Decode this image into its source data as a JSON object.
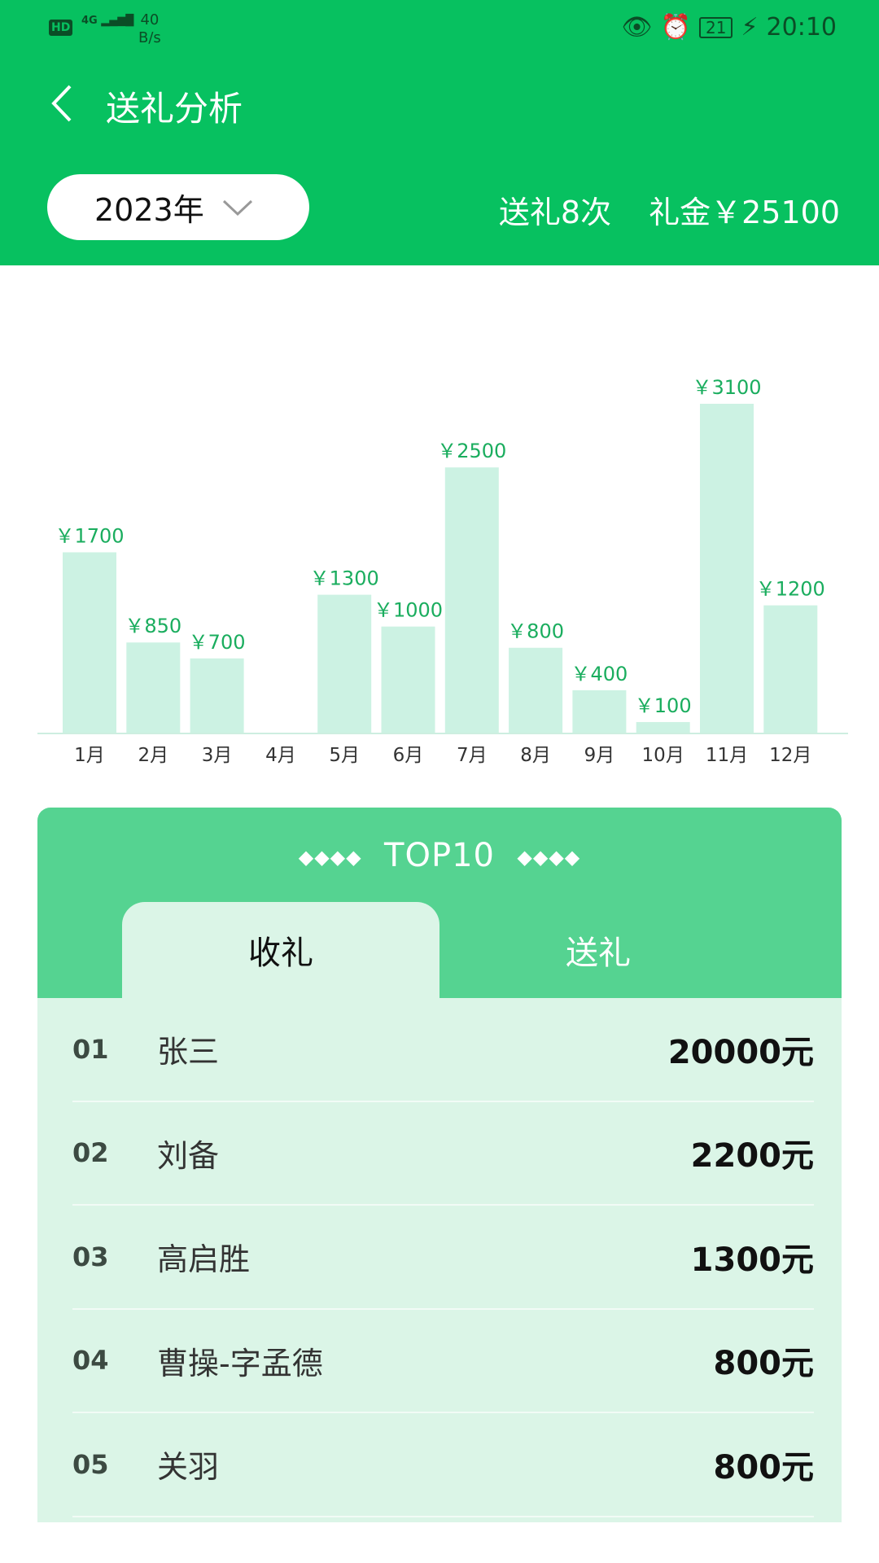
{
  "status_bar": {
    "hd": "HD",
    "network": "4G",
    "speed_value": "40",
    "speed_unit": "B/s",
    "battery": "21",
    "time": "20:10"
  },
  "header": {
    "title": "送礼分析",
    "year": "2023年",
    "count_text": "送礼8次",
    "amount_text": "礼金￥25100"
  },
  "colors": {
    "primary": "#07c160",
    "card_header": "#55d391",
    "list_bg": "#dbf5e7",
    "bar": "#ccf2e3",
    "bar_label": "#1aad5e"
  },
  "chart_data": {
    "type": "bar",
    "categories": [
      "1月",
      "2月",
      "3月",
      "4月",
      "5月",
      "6月",
      "7月",
      "8月",
      "9月",
      "10月",
      "11月",
      "12月"
    ],
    "values": [
      1700,
      850,
      700,
      0,
      1300,
      1000,
      2500,
      800,
      400,
      100,
      3100,
      1200
    ],
    "labels": [
      "￥1700",
      "￥850",
      "￥700",
      "",
      "￥1300",
      "￥1000",
      "￥2500",
      "￥800",
      "￥400",
      "￥100",
      "￥3100",
      "￥1200"
    ],
    "title": "",
    "xlabel": "",
    "ylabel": ""
  },
  "top10": {
    "title": "TOP10",
    "decor": "◆◆◆◆",
    "tabs": [
      {
        "label": "收礼",
        "active": true
      },
      {
        "label": "送礼",
        "active": false
      }
    ],
    "rows": [
      {
        "rank": "01",
        "name": "张三",
        "amount": "20000元"
      },
      {
        "rank": "02",
        "name": "刘备",
        "amount": "2200元"
      },
      {
        "rank": "03",
        "name": "高启胜",
        "amount": "1300元"
      },
      {
        "rank": "04",
        "name": "曹操-字孟德",
        "amount": "800元"
      },
      {
        "rank": "05",
        "name": "关羽",
        "amount": "800元"
      }
    ]
  }
}
